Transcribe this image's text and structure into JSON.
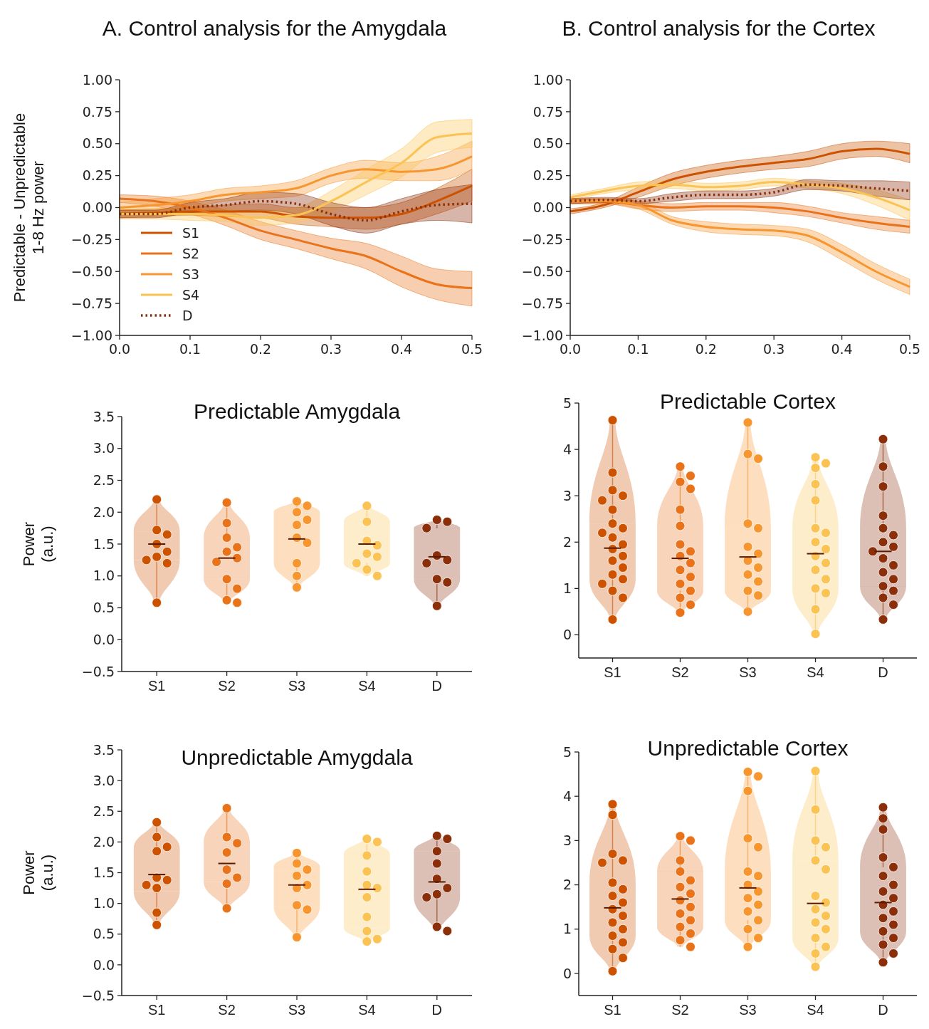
{
  "chart_data": [
    {
      "type": "line",
      "title": "A. Control analysis for the Amygdala",
      "ylabel": "Predictable - Unpredictable\n1-8 Hz power",
      "legend": "bottom left",
      "xlim": [
        0,
        0.5
      ],
      "xticks": [
        {
          "value": 0,
          "label": "0.0"
        },
        0.1,
        0.2,
        0.3,
        0.4,
        0.5
      ],
      "ylim": [
        -1,
        1
      ],
      "yticks": [
        {
          "value": -1,
          "label": "−1.00"
        },
        {
          "value": -0.75,
          "label": "−0.75"
        },
        {
          "value": -0.5,
          "label": "−0.50"
        },
        {
          "value": -0.25,
          "label": "−0.25"
        },
        {
          "value": 0,
          "label": "0.00"
        },
        {
          "value": 0.25,
          "label": "0.25"
        },
        {
          "value": 0.5,
          "label": "0.50"
        },
        {
          "value": 0.75,
          "label": "0.75"
        },
        {
          "value": 1,
          "label": "1.00"
        }
      ],
      "x": [
        0,
        0.05,
        0.1,
        0.15,
        0.2,
        0.25,
        0.3,
        0.35,
        0.4,
        0.45,
        0.5
      ],
      "series": [
        {
          "name": "S1",
          "color": "#cc5200",
          "line_style": "solid",
          "values": [
            -0.05,
            -0.04,
            -0.03,
            -0.03,
            -0.03,
            -0.07,
            -0.08,
            -0.08,
            -0.05,
            0.05,
            0.17
          ],
          "lower": [
            -0.08,
            -0.07,
            -0.06,
            -0.07,
            -0.08,
            -0.13,
            -0.15,
            -0.17,
            -0.13,
            -0.05,
            0.05
          ],
          "upper": [
            -0.02,
            -0.01,
            0.0,
            0.02,
            0.03,
            0.0,
            0.0,
            0.0,
            0.04,
            0.15,
            0.3
          ]
        },
        {
          "name": "S2",
          "color": "#e8731a",
          "line_style": "solid",
          "values": [
            0.07,
            0.05,
            0.0,
            -0.08,
            -0.18,
            -0.25,
            -0.32,
            -0.38,
            -0.5,
            -0.6,
            -0.63
          ],
          "lower": [
            0.04,
            0.01,
            -0.05,
            -0.14,
            -0.25,
            -0.32,
            -0.4,
            -0.48,
            -0.62,
            -0.72,
            -0.77
          ],
          "upper": [
            0.1,
            0.09,
            0.05,
            -0.02,
            -0.11,
            -0.18,
            -0.24,
            -0.28,
            -0.38,
            -0.48,
            -0.5
          ]
        },
        {
          "name": "S3",
          "color": "#f7962e",
          "line_style": "solid",
          "values": [
            0.0,
            0.02,
            0.05,
            0.1,
            0.12,
            0.15,
            0.25,
            0.3,
            0.28,
            0.3,
            0.4
          ],
          "lower": [
            -0.04,
            -0.03,
            0.0,
            0.05,
            0.07,
            0.09,
            0.19,
            0.23,
            0.21,
            0.21,
            0.3
          ],
          "upper": [
            0.04,
            0.07,
            0.1,
            0.15,
            0.17,
            0.21,
            0.31,
            0.37,
            0.35,
            0.4,
            0.52
          ]
        },
        {
          "name": "S4",
          "color": "#fbc254",
          "line_style": "solid",
          "values": [
            -0.05,
            -0.05,
            -0.05,
            -0.06,
            -0.08,
            -0.06,
            0.05,
            0.2,
            0.35,
            0.55,
            0.58
          ],
          "lower": [
            -0.09,
            -0.09,
            -0.1,
            -0.11,
            -0.14,
            -0.12,
            -0.03,
            0.1,
            0.24,
            0.43,
            0.47
          ],
          "upper": [
            -0.01,
            -0.01,
            0.0,
            -0.01,
            -0.02,
            0.0,
            0.13,
            0.3,
            0.46,
            0.67,
            0.69
          ]
        },
        {
          "name": "D",
          "color": "#8b2e0a",
          "line_style": "dotted",
          "values": [
            -0.05,
            -0.05,
            0.0,
            0.02,
            0.05,
            0.03,
            -0.05,
            -0.1,
            -0.03,
            0.02,
            0.03
          ],
          "lower": [
            -0.08,
            -0.08,
            -0.04,
            -0.03,
            -0.02,
            -0.05,
            -0.14,
            -0.2,
            -0.13,
            -0.1,
            -0.12
          ],
          "upper": [
            -0.02,
            -0.02,
            0.04,
            0.07,
            0.12,
            0.11,
            0.04,
            0.0,
            0.07,
            0.14,
            0.18
          ]
        }
      ]
    },
    {
      "type": "line",
      "title": "B. Control analysis for the Cortex",
      "legend": false,
      "xlim": [
        0,
        0.5
      ],
      "xticks": [
        {
          "value": 0,
          "label": "0.0"
        },
        0.1,
        0.2,
        0.3,
        0.4,
        0.5
      ],
      "ylim": [
        -1,
        1
      ],
      "yticks": [
        {
          "value": -1,
          "label": "−1.00"
        },
        {
          "value": -0.75,
          "label": "−0.75"
        },
        {
          "value": -0.5,
          "label": "−0.50"
        },
        {
          "value": -0.25,
          "label": "−0.25"
        },
        {
          "value": 0,
          "label": "0.00"
        },
        {
          "value": 0.25,
          "label": "0.25"
        },
        {
          "value": 0.5,
          "label": "0.50"
        },
        {
          "value": 0.75,
          "label": "0.75"
        },
        {
          "value": 1,
          "label": "1.00"
        }
      ],
      "x": [
        0,
        0.05,
        0.1,
        0.15,
        0.2,
        0.25,
        0.3,
        0.35,
        0.4,
        0.45,
        0.5
      ],
      "series": [
        {
          "color": "#cc5200",
          "line_style": "solid",
          "values": [
            -0.03,
            0.02,
            0.12,
            0.22,
            0.28,
            0.32,
            0.35,
            0.38,
            0.44,
            0.46,
            0.42
          ],
          "lower": [
            -0.05,
            0.0,
            0.08,
            0.17,
            0.23,
            0.27,
            0.3,
            0.32,
            0.38,
            0.4,
            0.35
          ],
          "upper": [
            -0.01,
            0.04,
            0.16,
            0.27,
            0.33,
            0.37,
            0.4,
            0.44,
            0.5,
            0.52,
            0.5
          ]
        },
        {
          "color": "#e8731a",
          "line_style": "solid",
          "values": [
            0.05,
            0.05,
            0.02,
            0.0,
            0.01,
            0.01,
            0.0,
            -0.03,
            -0.08,
            -0.12,
            -0.15
          ],
          "lower": [
            0.03,
            0.03,
            -0.01,
            -0.03,
            -0.02,
            -0.02,
            -0.04,
            -0.07,
            -0.12,
            -0.17,
            -0.2
          ],
          "upper": [
            0.07,
            0.07,
            0.05,
            0.03,
            0.04,
            0.04,
            0.04,
            0.01,
            -0.04,
            -0.07,
            -0.1
          ]
        },
        {
          "color": "#f7962e",
          "line_style": "solid",
          "values": [
            0.05,
            0.05,
            0.02,
            -0.1,
            -0.15,
            -0.17,
            -0.18,
            -0.22,
            -0.35,
            -0.5,
            -0.62
          ],
          "lower": [
            0.03,
            0.03,
            -0.01,
            -0.13,
            -0.19,
            -0.21,
            -0.22,
            -0.27,
            -0.41,
            -0.56,
            -0.68
          ],
          "upper": [
            0.07,
            0.07,
            0.05,
            -0.07,
            -0.11,
            -0.13,
            -0.14,
            -0.17,
            -0.29,
            -0.44,
            -0.56
          ]
        },
        {
          "color": "#fbc254",
          "line_style": "solid",
          "values": [
            0.08,
            0.13,
            0.17,
            0.18,
            0.16,
            0.17,
            0.2,
            0.18,
            0.15,
            0.08,
            -0.02
          ],
          "lower": [
            0.06,
            0.11,
            0.14,
            0.15,
            0.13,
            0.14,
            0.17,
            0.15,
            0.11,
            0.02,
            -0.1
          ],
          "upper": [
            0.1,
            0.15,
            0.2,
            0.21,
            0.19,
            0.2,
            0.23,
            0.21,
            0.19,
            0.14,
            0.06
          ]
        },
        {
          "color": "#8b2e0a",
          "line_style": "dotted",
          "values": [
            0.05,
            0.06,
            0.05,
            0.08,
            0.1,
            0.1,
            0.12,
            0.18,
            0.17,
            0.15,
            0.13
          ],
          "lower": [
            0.03,
            0.04,
            0.03,
            0.05,
            0.07,
            0.07,
            0.09,
            0.14,
            0.13,
            0.09,
            0.06
          ],
          "upper": [
            0.07,
            0.08,
            0.07,
            0.11,
            0.13,
            0.13,
            0.15,
            0.22,
            0.21,
            0.21,
            0.2
          ]
        }
      ]
    },
    {
      "type": "box",
      "title": "Predictable Amygdala",
      "ylabel": "Power\n(a.u.)",
      "categories": [
        "S1",
        "S2",
        "S3",
        "S4",
        "D"
      ],
      "colors": [
        "#cc5200",
        "#e8731a",
        "#f7962e",
        "#fbc254",
        "#8b2e0a"
      ],
      "ylim": [
        -0.5,
        3.5
      ],
      "yticks": [
        {
          "value": -0.5,
          "label": "−0.5"
        },
        {
          "value": 0,
          "label": "0.0"
        },
        0.5,
        {
          "value": 1,
          "label": "1.0"
        },
        1.5,
        {
          "value": 2,
          "label": "2.0"
        },
        2.5,
        {
          "value": 3,
          "label": "3.0"
        },
        3.5
      ],
      "boxes": [
        {
          "low": 0.58,
          "q1": 1.25,
          "median": 1.5,
          "q3": 1.7,
          "high": 2.2
        },
        {
          "low": 0.58,
          "q1": 0.95,
          "median": 1.28,
          "q3": 1.6,
          "high": 2.15
        },
        {
          "low": 0.82,
          "q1": 1.2,
          "median": 1.58,
          "q3": 2.0,
          "high": 2.17
        },
        {
          "low": 1.0,
          "q1": 1.2,
          "median": 1.5,
          "q3": 1.85,
          "high": 2.1
        },
        {
          "low": 0.53,
          "q1": 0.95,
          "median": 1.3,
          "q3": 1.75,
          "high": 1.88
        }
      ],
      "series": [
        {
          "type": "scatter",
          "color": "#cc5200",
          "x": [
            "S1",
            "S1",
            "S1",
            "S1",
            "S1",
            "S1",
            "S1",
            "S1",
            "S1"
          ],
          "values": [
            2.2,
            1.72,
            1.65,
            1.5,
            1.38,
            1.3,
            1.25,
            1.2,
            0.58
          ]
        },
        {
          "type": "scatter",
          "color": "#e8731a",
          "x": [
            "S2",
            "S2",
            "S2",
            "S2",
            "S2",
            "S2",
            "S2",
            "S2",
            "S2",
            "S2",
            "S2"
          ],
          "values": [
            2.15,
            1.83,
            1.6,
            1.45,
            1.38,
            1.28,
            1.22,
            0.95,
            0.8,
            0.62,
            0.58
          ]
        },
        {
          "type": "scatter",
          "color": "#f7962e",
          "x": [
            "S3",
            "S3",
            "S3",
            "S3",
            "S3",
            "S3",
            "S3",
            "S3",
            "S3",
            "S3"
          ],
          "values": [
            2.17,
            2.1,
            2.0,
            1.88,
            1.8,
            1.6,
            1.52,
            1.2,
            1.0,
            0.82
          ]
        },
        {
          "type": "scatter",
          "color": "#fbc254",
          "x": [
            "S4",
            "S4",
            "S4",
            "S4",
            "S4",
            "S4",
            "S4",
            "S4",
            "S4"
          ],
          "values": [
            2.1,
            1.85,
            1.55,
            1.48,
            1.35,
            1.3,
            1.2,
            1.1,
            1.0
          ]
        },
        {
          "type": "scatter",
          "color": "#8b2e0a",
          "x": [
            "D",
            "D",
            "D",
            "D",
            "D",
            "D",
            "D",
            "D",
            "D"
          ],
          "values": [
            1.88,
            1.85,
            1.75,
            1.32,
            1.25,
            1.2,
            0.95,
            0.9,
            0.53
          ]
        }
      ]
    },
    {
      "type": "box",
      "title": "Predictable Cortex",
      "categories": [
        "S1",
        "S2",
        "S3",
        "S4",
        "D"
      ],
      "colors": [
        "#cc5200",
        "#e8731a",
        "#f7962e",
        "#fbc254",
        "#8b2e0a"
      ],
      "ylim": [
        -0.5,
        5
      ],
      "yticks": [
        0,
        1,
        2,
        3,
        4,
        5
      ],
      "boxes": [
        {
          "low": 0.33,
          "q1": 1.2,
          "median": 1.87,
          "q3": 2.4,
          "high": 4.63
        },
        {
          "low": 0.48,
          "q1": 0.95,
          "median": 1.65,
          "q3": 2.35,
          "high": 3.63
        },
        {
          "low": 0.5,
          "q1": 0.95,
          "median": 1.68,
          "q3": 2.3,
          "high": 4.58
        },
        {
          "low": 0.02,
          "q1": 1.0,
          "median": 1.75,
          "q3": 2.3,
          "high": 3.83
        },
        {
          "low": 0.33,
          "q1": 1.05,
          "median": 1.8,
          "q3": 2.3,
          "high": 4.22
        }
      ],
      "series": [
        {
          "type": "scatter",
          "color": "#cc5200",
          "x": [
            "S1",
            "S1",
            "S1",
            "S1",
            "S1",
            "S1",
            "S1",
            "S1",
            "S1",
            "S1",
            "S1",
            "S1",
            "S1",
            "S1",
            "S1",
            "S1",
            "S1",
            "S1",
            "S1",
            "S1",
            "S1"
          ],
          "values": [
            4.63,
            3.5,
            3.12,
            3.0,
            2.9,
            2.7,
            2.4,
            2.3,
            2.2,
            2.1,
            1.95,
            1.85,
            1.7,
            1.6,
            1.45,
            1.3,
            1.2,
            1.1,
            0.95,
            0.8,
            0.33
          ]
        },
        {
          "type": "scatter",
          "color": "#e8731a",
          "x": [
            "S2",
            "S2",
            "S2",
            "S2",
            "S2",
            "S2",
            "S2",
            "S2",
            "S2",
            "S2",
            "S2",
            "S2",
            "S2",
            "S2",
            "S2",
            "S2",
            "S2"
          ],
          "values": [
            3.63,
            3.43,
            3.3,
            3.15,
            2.7,
            2.35,
            1.95,
            1.8,
            1.7,
            1.55,
            1.4,
            1.25,
            1.1,
            0.95,
            0.8,
            0.65,
            0.48
          ]
        },
        {
          "type": "scatter",
          "color": "#f7962e",
          "x": [
            "S3",
            "S3",
            "S3",
            "S3",
            "S3",
            "S3",
            "S3",
            "S3",
            "S3",
            "S3",
            "S3",
            "S3",
            "S3",
            "S3"
          ],
          "values": [
            4.58,
            3.9,
            3.8,
            2.4,
            2.3,
            1.9,
            1.75,
            1.6,
            1.45,
            1.3,
            1.15,
            0.95,
            0.85,
            0.5
          ]
        },
        {
          "type": "scatter",
          "color": "#fbc254",
          "x": [
            "S4",
            "S4",
            "S4",
            "S4",
            "S4",
            "S4",
            "S4",
            "S4",
            "S4",
            "S4",
            "S4",
            "S4",
            "S4",
            "S4",
            "S4",
            "S4",
            "S4"
          ],
          "values": [
            3.83,
            3.7,
            3.6,
            3.25,
            2.9,
            2.3,
            2.2,
            2.0,
            1.85,
            1.7,
            1.55,
            1.4,
            1.2,
            1.0,
            0.9,
            0.55,
            0.02
          ]
        },
        {
          "type": "scatter",
          "color": "#8b2e0a",
          "x": [
            "D",
            "D",
            "D",
            "D",
            "D",
            "D",
            "D",
            "D",
            "D",
            "D",
            "D",
            "D",
            "D",
            "D",
            "D",
            "D",
            "D",
            "D"
          ],
          "values": [
            4.22,
            3.63,
            3.2,
            2.57,
            2.3,
            2.15,
            2.0,
            1.9,
            1.8,
            1.65,
            1.5,
            1.35,
            1.2,
            1.05,
            0.95,
            0.8,
            0.65,
            0.33
          ]
        }
      ]
    },
    {
      "type": "box",
      "title": "Unpredictable Amygdala",
      "ylabel": "Power\n(a.u.)",
      "categories": [
        "S1",
        "S2",
        "S3",
        "S4",
        "D"
      ],
      "colors": [
        "#cc5200",
        "#e8731a",
        "#f7962e",
        "#fbc254",
        "#8b2e0a"
      ],
      "ylim": [
        -0.5,
        3.5
      ],
      "yticks": [
        {
          "value": -0.5,
          "label": "−0.5"
        },
        {
          "value": 0,
          "label": "0.0"
        },
        0.5,
        {
          "value": 1,
          "label": "1.0"
        },
        1.5,
        {
          "value": 2,
          "label": "2.0"
        },
        2.5,
        {
          "value": 3,
          "label": "3.0"
        },
        3.5
      ],
      "boxes": [
        {
          "low": 0.65,
          "q1": 1.2,
          "median": 1.47,
          "q3": 1.9,
          "high": 2.32
        },
        {
          "low": 0.92,
          "q1": 1.35,
          "median": 1.65,
          "q3": 2.0,
          "high": 2.55
        },
        {
          "low": 0.45,
          "q1": 0.95,
          "median": 1.3,
          "q3": 1.6,
          "high": 1.82
        },
        {
          "low": 0.38,
          "q1": 0.6,
          "median": 1.23,
          "q3": 1.8,
          "high": 2.05
        },
        {
          "low": 0.55,
          "q1": 1.1,
          "median": 1.35,
          "q3": 1.85,
          "high": 2.1
        }
      ],
      "series": [
        {
          "type": "scatter",
          "color": "#cc5200",
          "x": [
            "S1",
            "S1",
            "S1",
            "S1",
            "S1",
            "S1",
            "S1",
            "S1",
            "S1",
            "S1"
          ],
          "values": [
            2.32,
            2.08,
            1.92,
            1.85,
            1.42,
            1.38,
            1.3,
            1.25,
            0.85,
            0.65
          ]
        },
        {
          "type": "scatter",
          "color": "#e8731a",
          "x": [
            "S2",
            "S2",
            "S2",
            "S2",
            "S2",
            "S2",
            "S2",
            "S2"
          ],
          "values": [
            2.55,
            2.08,
            1.98,
            1.83,
            1.55,
            1.42,
            1.32,
            0.92
          ]
        },
        {
          "type": "scatter",
          "color": "#f7962e",
          "x": [
            "S3",
            "S3",
            "S3",
            "S3",
            "S3",
            "S3",
            "S3",
            "S3",
            "S3"
          ],
          "values": [
            1.82,
            1.65,
            1.55,
            1.45,
            1.3,
            1.25,
            0.97,
            0.9,
            0.45
          ]
        },
        {
          "type": "scatter",
          "color": "#fbc254",
          "x": [
            "S4",
            "S4",
            "S4",
            "S4",
            "S4",
            "S4",
            "S4",
            "S4",
            "S4",
            "S4",
            "S4"
          ],
          "values": [
            2.05,
            2.0,
            1.78,
            1.52,
            1.3,
            1.25,
            1.1,
            0.78,
            0.55,
            0.42,
            0.38
          ]
        },
        {
          "type": "scatter",
          "color": "#8b2e0a",
          "x": [
            "D",
            "D",
            "D",
            "D",
            "D",
            "D",
            "D",
            "D",
            "D",
            "D"
          ],
          "values": [
            2.1,
            2.05,
            1.85,
            1.65,
            1.4,
            1.25,
            1.15,
            1.1,
            0.62,
            0.55
          ]
        }
      ]
    },
    {
      "type": "box",
      "title": "Unpredictable Cortex",
      "categories": [
        "S1",
        "S2",
        "S3",
        "S4",
        "D"
      ],
      "colors": [
        "#cc5200",
        "#e8731a",
        "#f7962e",
        "#fbc254",
        "#8b2e0a"
      ],
      "ylim": [
        -0.5,
        5
      ],
      "yticks": [
        0,
        1,
        2,
        3,
        4,
        5
      ],
      "boxes": [
        {
          "low": 0.05,
          "q1": 0.85,
          "median": 1.48,
          "q3": 2.05,
          "high": 3.82
        },
        {
          "low": 0.6,
          "q1": 1.05,
          "median": 1.68,
          "q3": 2.3,
          "high": 3.1
        },
        {
          "low": 0.6,
          "q1": 1.2,
          "median": 1.93,
          "q3": 2.3,
          "high": 4.55
        },
        {
          "low": 0.15,
          "q1": 0.8,
          "median": 1.58,
          "q3": 2.55,
          "high": 4.57
        },
        {
          "low": 0.25,
          "q1": 0.95,
          "median": 1.6,
          "q3": 2.4,
          "high": 3.75
        }
      ],
      "series": [
        {
          "type": "scatter",
          "color": "#cc5200",
          "x": [
            "S1",
            "S1",
            "S1",
            "S1",
            "S1",
            "S1",
            "S1",
            "S1",
            "S1",
            "S1",
            "S1",
            "S1",
            "S1",
            "S1",
            "S1",
            "S1",
            "S1",
            "S1"
          ],
          "values": [
            3.82,
            3.58,
            2.7,
            2.55,
            2.5,
            2.05,
            1.9,
            1.75,
            1.6,
            1.45,
            1.3,
            1.15,
            1.0,
            0.85,
            0.7,
            0.55,
            0.35,
            0.05
          ]
        },
        {
          "type": "scatter",
          "color": "#e8731a",
          "x": [
            "S2",
            "S2",
            "S2",
            "S2",
            "S2",
            "S2",
            "S2",
            "S2",
            "S2",
            "S2",
            "S2",
            "S2",
            "S2",
            "S2",
            "S2"
          ],
          "values": [
            3.1,
            3.0,
            2.55,
            2.3,
            2.1,
            1.95,
            1.8,
            1.65,
            1.5,
            1.35,
            1.2,
            1.05,
            0.9,
            0.75,
            0.6
          ]
        },
        {
          "type": "scatter",
          "color": "#f7962e",
          "x": [
            "S3",
            "S3",
            "S3",
            "S3",
            "S3",
            "S3",
            "S3",
            "S3",
            "S3",
            "S3",
            "S3",
            "S3",
            "S3",
            "S3",
            "S3",
            "S3"
          ],
          "values": [
            4.55,
            4.45,
            4.12,
            3.05,
            2.85,
            2.3,
            2.2,
            2.0,
            1.85,
            1.7,
            1.55,
            1.4,
            1.2,
            1.0,
            0.8,
            0.6
          ]
        },
        {
          "type": "scatter",
          "color": "#fbc254",
          "x": [
            "S4",
            "S4",
            "S4",
            "S4",
            "S4",
            "S4",
            "S4",
            "S4",
            "S4",
            "S4",
            "S4",
            "S4",
            "S4",
            "S4",
            "S4",
            "S4"
          ],
          "values": [
            4.57,
            3.7,
            3.0,
            2.85,
            2.55,
            2.35,
            1.75,
            1.6,
            1.45,
            1.3,
            1.15,
            1.0,
            0.8,
            0.6,
            0.45,
            0.15
          ]
        },
        {
          "type": "scatter",
          "color": "#8b2e0a",
          "x": [
            "D",
            "D",
            "D",
            "D",
            "D",
            "D",
            "D",
            "D",
            "D",
            "D",
            "D",
            "D",
            "D",
            "D",
            "D",
            "D",
            "D",
            "D"
          ],
          "values": [
            3.75,
            3.5,
            3.25,
            2.62,
            2.4,
            2.2,
            2.0,
            1.85,
            1.7,
            1.55,
            1.4,
            1.25,
            1.1,
            0.95,
            0.8,
            0.65,
            0.45,
            0.25
          ]
        }
      ]
    }
  ]
}
